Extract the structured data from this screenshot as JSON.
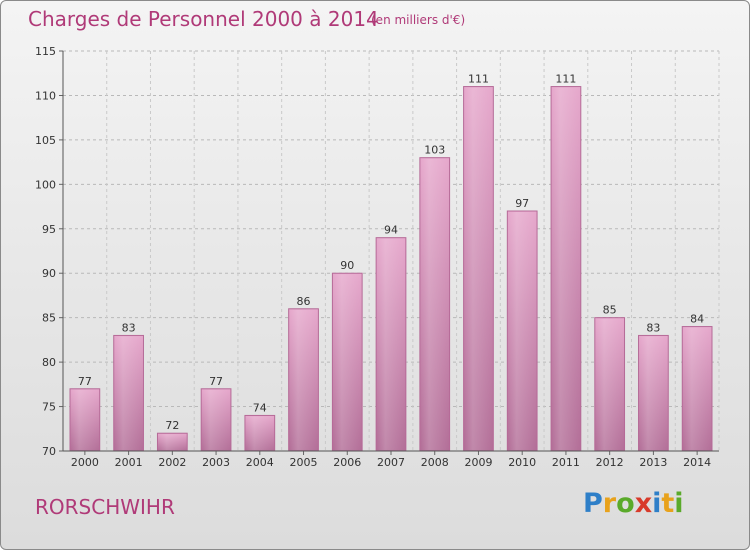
{
  "header": {
    "title": "Charges de Personnel 2000 à 2014",
    "subtitle": "(en milliers d'€)"
  },
  "footer": {
    "commune": "RORSCHWIHR",
    "logo_letters": [
      "P",
      "r",
      "o",
      "x",
      "i",
      "t",
      "i"
    ]
  },
  "chart_data": {
    "type": "bar",
    "title": "Charges de Personnel 2000 à 2014",
    "subtitle": "(en milliers d'€)",
    "categories": [
      "2000",
      "2001",
      "2002",
      "2003",
      "2004",
      "2005",
      "2006",
      "2007",
      "2008",
      "2009",
      "2010",
      "2011",
      "2012",
      "2013",
      "2014"
    ],
    "values": [
      77,
      83,
      72,
      77,
      74,
      86,
      90,
      94,
      103,
      111,
      97,
      111,
      85,
      83,
      84
    ],
    "data_labels": [
      "77",
      "83",
      "72",
      "77",
      "74",
      "86",
      "90",
      "94",
      "103",
      "111",
      "97",
      "111",
      "85",
      "83",
      "84"
    ],
    "ylim": [
      70,
      115
    ],
    "yticks": [
      70,
      75,
      80,
      85,
      90,
      95,
      100,
      105,
      110,
      115
    ],
    "grid": true,
    "bar_color": "#d98fb8",
    "bar_edge_color": "#b56a97"
  }
}
